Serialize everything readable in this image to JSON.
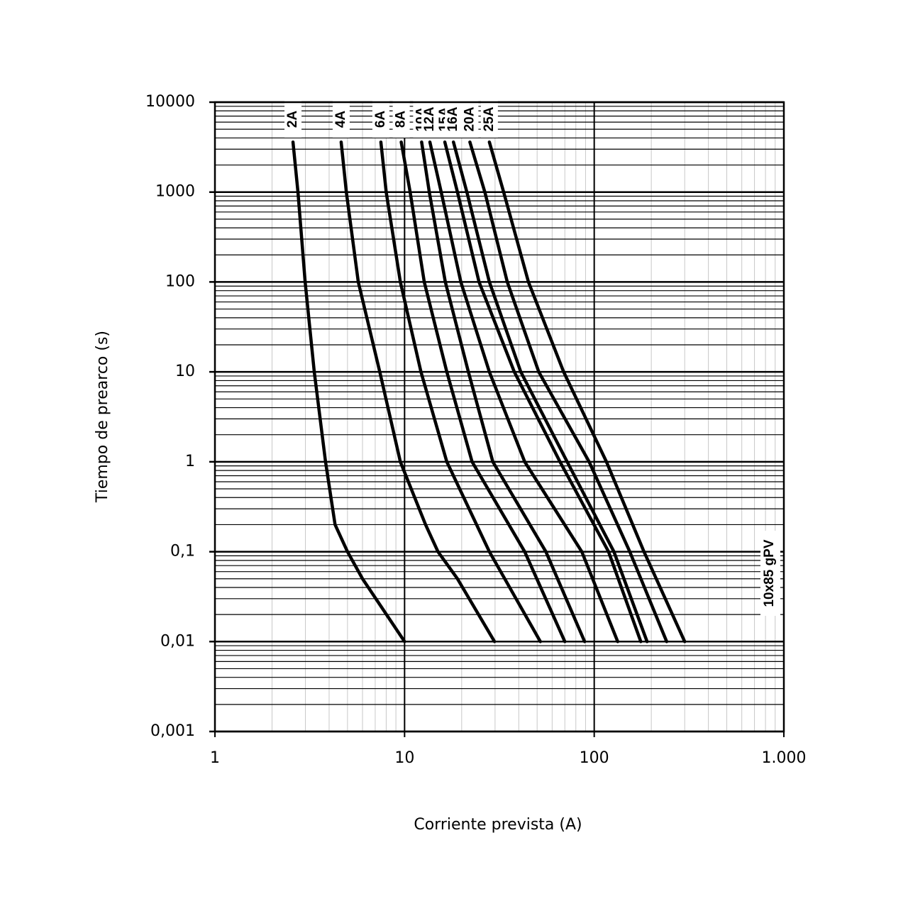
{
  "chart_data": {
    "type": "line",
    "x_label": "Corriente prevista (A)",
    "y_label": "Tiempo de prearco (s)",
    "annotation": "10x85 gPV",
    "xscale": "log",
    "yscale": "log",
    "grid": true,
    "minor_grid": true,
    "xlim": [
      1,
      1000
    ],
    "xticks": [
      1,
      10,
      100,
      {
        "value": 1000,
        "label": "1.000"
      }
    ],
    "ylim": [
      0.001,
      10000
    ],
    "yticks": [
      10000,
      1000,
      100,
      10,
      1,
      {
        "value": 0.1,
        "label": "0,1"
      },
      {
        "value": 0.01,
        "label": "0,01"
      },
      {
        "value": 0.001,
        "label": "0,001"
      }
    ],
    "series": [
      {
        "name": "2A",
        "color": "#000000",
        "x": [
          2.58,
          2.74,
          2.99,
          3.34,
          3.83,
          4.3,
          5.0,
          6.0,
          10
        ],
        "values": [
          3600,
          1000,
          100,
          10,
          1,
          0.2,
          0.1,
          0.05,
          0.01
        ]
      },
      {
        "name": "4A",
        "color": "#000000",
        "x": [
          4.63,
          4.93,
          5.7,
          7.4,
          9.5,
          12.9,
          15,
          19,
          29.8
        ],
        "values": [
          3600,
          1000,
          100,
          10,
          1,
          0.2,
          0.1,
          0.05,
          0.01
        ]
      },
      {
        "name": "6A",
        "color": "#000000",
        "x": [
          7.5,
          8.0,
          9.5,
          12.2,
          16.7,
          28,
          52
        ],
        "values": [
          3600,
          1000,
          100,
          10,
          1,
          0.1,
          0.01
        ]
      },
      {
        "name": "8A",
        "color": "#000000",
        "x": [
          9.6,
          10.7,
          12.7,
          16.7,
          22.7,
          43,
          70
        ],
        "values": [
          3600,
          1000,
          100,
          10,
          1,
          0.1,
          0.01
        ]
      },
      {
        "name": "10A",
        "color": "#000000",
        "x": [
          12.3,
          13.5,
          16.4,
          21.7,
          29.2,
          55.6,
          89
        ],
        "values": [
          3600,
          1000,
          100,
          10,
          1,
          0.1,
          0.01
        ]
      },
      {
        "name": "12A",
        "color": "#000000",
        "x": [
          13.6,
          15.6,
          19.8,
          28,
          43,
          86,
          133
        ],
        "values": [
          3600,
          1000,
          100,
          10,
          1,
          0.1,
          0.01
        ]
      },
      {
        "name": "15A",
        "color": "#000000",
        "x": [
          16.3,
          19,
          24.7,
          37.9,
          66,
          119,
          176
        ],
        "values": [
          3600,
          1000,
          100,
          10,
          1,
          0.1,
          0.01
        ]
      },
      {
        "name": "16A",
        "color": "#000000",
        "x": [
          18.1,
          21.3,
          28,
          41,
          72,
          127,
          190
        ],
        "values": [
          3600,
          1000,
          100,
          10,
          1,
          0.1,
          0.01
        ]
      },
      {
        "name": "20A",
        "color": "#000000",
        "x": [
          22.1,
          26.5,
          34.8,
          51,
          94,
          154,
          241
        ],
        "values": [
          3600,
          1000,
          100,
          10,
          1,
          0.1,
          0.01
        ]
      },
      {
        "name": "25A",
        "color": "#000000",
        "x": [
          28,
          33.3,
          45,
          69,
          116,
          183,
          300
        ],
        "values": [
          3600,
          1000,
          100,
          10,
          1,
          0.1,
          0.01
        ]
      }
    ]
  }
}
